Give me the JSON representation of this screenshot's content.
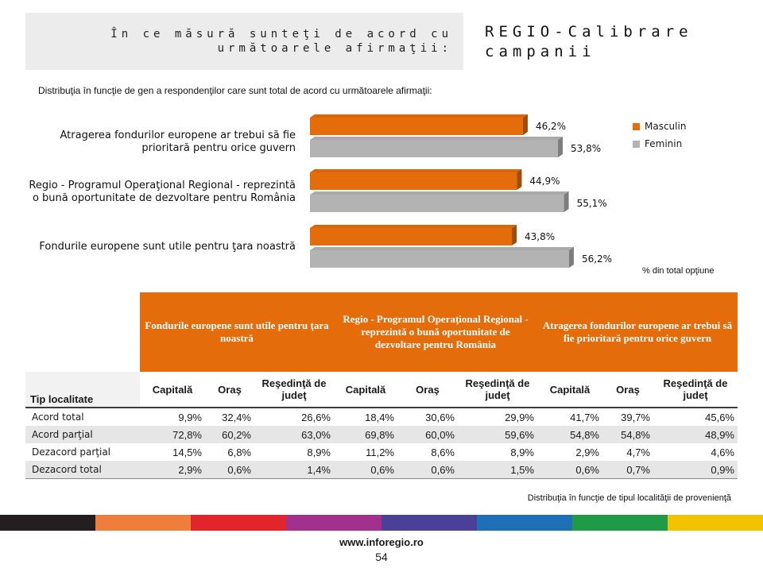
{
  "question": "În ce măsură sunteţi de acord cu următoarele afirmaţii:",
  "title": "REGIO-Calibrare campanii",
  "chart_caption": "Distribuţia în funcţie de gen a respondenţilor care sunt total de acord cu următoarele afirmaţii:",
  "unit_note": "% din total opţiune",
  "chart_data": {
    "type": "bar",
    "orientation": "horizontal",
    "categories": [
      "Atragerea fondurilor europene ar trebui să fie prioritară pentru orice guvern",
      "Regio - Programul Operaţional Regional - reprezintă o bună oportunitate de dezvoltare pentru România",
      "Fondurile europene sunt utile pentru ţara noastră"
    ],
    "series": [
      {
        "name": "Masculin",
        "values": [
          46.2,
          44.9,
          43.8
        ],
        "labels": [
          "46,2%",
          "44,9%",
          "43,8%"
        ],
        "color": "#e46c0a"
      },
      {
        "name": "Feminin",
        "values": [
          53.8,
          55.1,
          56.2
        ],
        "labels": [
          "53,8%",
          "55,1%",
          "56,2%"
        ],
        "color": "#b3b3b3"
      }
    ],
    "legend_position": "top-right",
    "grid": false,
    "xlim": [
      0,
      100
    ]
  },
  "table": {
    "groups": [
      "Fondurile europene sunt utile pentru ţara noastră",
      "Regio - Programul Operaţional Regional - reprezintă o bună oportunitate de dezvoltare pentru România",
      "Atragerea fondurilor europene ar trebui să fie prioritară pentru orice guvern"
    ],
    "row_header": "Tip localitate",
    "subheaders": [
      "Capitală",
      "Oraş",
      "Reşedinţă de judeţ",
      "Capitală",
      "Oraş",
      "Reşedinţă de judeţ",
      "Capitală",
      "Oraş",
      "Reşedinţă de judeţ"
    ],
    "rows": [
      {
        "label": "Acord total",
        "values": [
          "9,9%",
          "32,4%",
          "26,6%",
          "18,4%",
          "30,6%",
          "29,9%",
          "41,7%",
          "39,7%",
          "45,6%"
        ]
      },
      {
        "label": "Acord parţial",
        "values": [
          "72,8%",
          "60,2%",
          "63,0%",
          "69,8%",
          "60,0%",
          "59,6%",
          "54,8%",
          "54,8%",
          "48,9%"
        ]
      },
      {
        "label": "Dezacord parţial",
        "values": [
          "14,5%",
          "6,8%",
          "8,9%",
          "11,2%",
          "8,6%",
          "8,9%",
          "2,9%",
          "4,7%",
          "4,6%"
        ]
      },
      {
        "label": "Dezacord total",
        "values": [
          "2,9%",
          "0,6%",
          "1,4%",
          "0,6%",
          "0,6%",
          "1,5%",
          "0,6%",
          "0,7%",
          "0,9%"
        ]
      }
    ]
  },
  "table_footnote": "Distribuţia în funcţie de tipul localităţii de provenienţă",
  "strip_colors": [
    "#231f20",
    "#ef7d3c",
    "#e2252b",
    "#a2318d",
    "#4b3f97",
    "#1f6fb7",
    "#1f9a47",
    "#f2c300"
  ],
  "footer": {
    "url": "www.inforegio.ro",
    "page": "54"
  }
}
